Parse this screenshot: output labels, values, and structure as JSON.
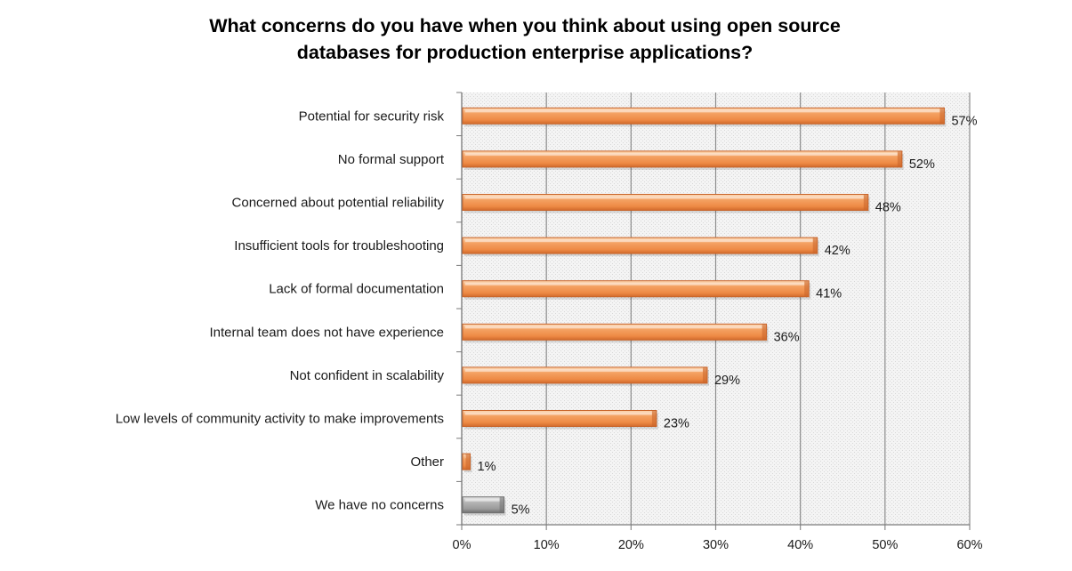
{
  "chart_data": {
    "type": "bar",
    "orientation": "horizontal",
    "title_lines": [
      "What concerns do you have when you think about using open source",
      "databases for production enterprise applications?"
    ],
    "categories": [
      "Potential for security risk",
      "No formal support",
      "Concerned about potential reliability",
      "Insufficient tools for troubleshooting",
      "Lack of formal documentation",
      "Internal team does not have experience",
      "Not confident in scalability",
      "Low levels of community activity to make improvements",
      "Other",
      "We have no concerns"
    ],
    "values": [
      57,
      52,
      48,
      42,
      41,
      36,
      29,
      23,
      1,
      5
    ],
    "value_labels": [
      "57%",
      "52%",
      "48%",
      "42%",
      "41%",
      "36%",
      "29%",
      "23%",
      "1%",
      "5%"
    ],
    "xlim": [
      0,
      60
    ],
    "xticks": [
      0,
      10,
      20,
      30,
      40,
      50,
      60
    ],
    "xtick_labels": [
      "0%",
      "10%",
      "20%",
      "30%",
      "40%",
      "50%",
      "60%"
    ],
    "grid": true,
    "colors": {
      "bar": "#f0904c",
      "bar_light": "#fbc89a",
      "bar_dark": "#c8642a",
      "bar_gray": "#a0a0a0",
      "bar_gray_light": "#d6d6d6",
      "bar_gray_dark": "#707070",
      "plot_background": "#f2f2f2",
      "gridline": "#8c8c8c"
    },
    "highlight_gray_category": "We have no concerns"
  }
}
